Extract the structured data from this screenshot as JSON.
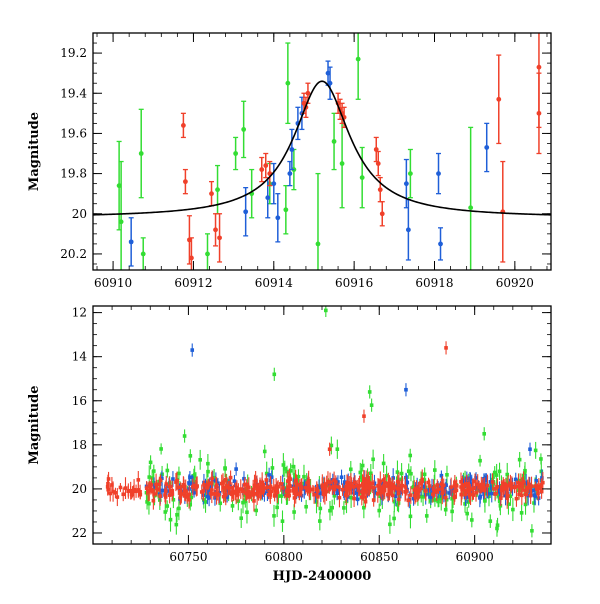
{
  "chart_data": [
    {
      "type": "scatter",
      "xlabel": "",
      "ylabel": "Magnitude",
      "xlim": [
        60909.5,
        60920.9
      ],
      "ylim": [
        20.28,
        19.1
      ],
      "y_inverted": true,
      "x_ticks": [
        60910,
        60912,
        60914,
        60916,
        60918,
        60920
      ],
      "x_tick_labels": [
        "60910",
        "60912",
        "60914",
        "60916",
        "60918",
        "60920"
      ],
      "y_ticks": [
        19.2,
        19.4,
        19.6,
        19.8,
        20,
        20.2
      ],
      "y_tick_labels": [
        "19.2",
        "19.4",
        "19.6",
        "19.8",
        "20",
        "20.2"
      ],
      "series_colors": {
        "green": "#33dd33",
        "blue": "#1f5fd8",
        "red": "#f0402a",
        "model": "#000000"
      },
      "series": [
        {
          "color_key": "green",
          "points": [
            [
              60910.15,
              19.86,
              0.22
            ],
            [
              60910.2,
              20.04,
              0.3
            ],
            [
              60910.7,
              19.7,
              0.22
            ],
            [
              60910.75,
              20.2,
              0.08
            ],
            [
              60912.35,
              20.2,
              0.1
            ],
            [
              60912.6,
              19.88,
              0.12
            ],
            [
              60913.05,
              19.7,
              0.08
            ],
            [
              60913.25,
              19.58,
              0.14
            ],
            [
              60913.45,
              19.9,
              0.12
            ],
            [
              60913.9,
              19.85,
              0.1
            ],
            [
              60914.35,
              19.35,
              0.2
            ],
            [
              60914.3,
              19.98,
              0.12
            ],
            [
              60914.5,
              19.78,
              0.1
            ],
            [
              60915.1,
              20.15,
              0.35
            ],
            [
              60915.5,
              19.64,
              0.14
            ],
            [
              60915.7,
              19.75,
              0.22
            ],
            [
              60916.1,
              19.23,
              0.2
            ],
            [
              60916.2,
              19.82,
              0.15
            ],
            [
              60918.9,
              19.97,
              0.4
            ],
            [
              60917.4,
              19.8,
              0.12
            ]
          ]
        },
        {
          "color_key": "blue",
          "points": [
            [
              60910.45,
              20.14,
              0.12
            ],
            [
              60913.3,
              19.99,
              0.12
            ],
            [
              60913.85,
              19.92,
              0.1
            ],
            [
              60914.0,
              19.85,
              0.1
            ],
            [
              60914.1,
              20.02,
              0.12
            ],
            [
              60914.4,
              19.8,
              0.06
            ],
            [
              60914.45,
              19.68,
              0.1
            ],
            [
              60914.6,
              19.55,
              0.08
            ],
            [
              60914.7,
              19.5,
              0.08
            ],
            [
              60915.35,
              19.3,
              0.06
            ],
            [
              60915.4,
              19.35,
              0.08
            ],
            [
              60917.3,
              19.85,
              0.12
            ],
            [
              60917.35,
              20.08,
              0.15
            ],
            [
              60918.1,
              19.8,
              0.1
            ],
            [
              60918.15,
              20.15,
              0.08
            ],
            [
              60919.3,
              19.67,
              0.12
            ]
          ]
        },
        {
          "color_key": "red",
          "points": [
            [
              60911.75,
              19.56,
              0.06
            ],
            [
              60911.8,
              19.84,
              0.06
            ],
            [
              60911.9,
              20.13,
              0.12
            ],
            [
              60911.95,
              20.22,
              0.1
            ],
            [
              60912.45,
              19.9,
              0.06
            ],
            [
              60912.55,
              20.08,
              0.08
            ],
            [
              60912.65,
              20.12,
              0.12
            ],
            [
              60913.7,
              19.78,
              0.06
            ],
            [
              60913.8,
              19.76,
              0.06
            ],
            [
              60913.9,
              19.8,
              0.06
            ],
            [
              60914.75,
              19.45,
              0.05
            ],
            [
              60914.8,
              19.47,
              0.05
            ],
            [
              60914.85,
              19.4,
              0.05
            ],
            [
              60915.6,
              19.45,
              0.05
            ],
            [
              60915.65,
              19.48,
              0.05
            ],
            [
              60915.7,
              19.5,
              0.05
            ],
            [
              60915.75,
              19.52,
              0.05
            ],
            [
              60916.55,
              19.68,
              0.06
            ],
            [
              60916.6,
              19.75,
              0.06
            ],
            [
              60916.65,
              19.88,
              0.06
            ],
            [
              60916.7,
              20.0,
              0.06
            ],
            [
              60919.6,
              19.43,
              0.22
            ],
            [
              60919.7,
              19.99,
              0.25
            ],
            [
              60920.6,
              19.27,
              0.3
            ],
            [
              60920.6,
              19.5,
              0.2
            ]
          ]
        }
      ],
      "model_curve": {
        "baseline": 20.02,
        "peak_time": 60915.2,
        "peak_magnitude": 19.34,
        "width": 0.85
      }
    },
    {
      "type": "scatter",
      "xlabel": "HJD-2400000",
      "ylabel": "Magnitude",
      "xlim": [
        60700,
        60940
      ],
      "ylim": [
        22.5,
        11.7
      ],
      "y_inverted": true,
      "x_ticks": [
        60750,
        60800,
        60850,
        60900
      ],
      "x_tick_labels": [
        "60750",
        "60800",
        "60850",
        "60900"
      ],
      "y_ticks": [
        12,
        14,
        16,
        18,
        20,
        22
      ],
      "y_tick_labels": [
        "12",
        "14",
        "16",
        "18",
        "20",
        "22"
      ],
      "outliers": {
        "green": [
          [
            60748,
            17.6
          ],
          [
            60751,
            18.5
          ],
          [
            60795,
            14.8
          ],
          [
            60822,
            11.9
          ],
          [
            60845,
            15.6
          ],
          [
            60846,
            16.2
          ],
          [
            60790,
            18.3
          ],
          [
            60905,
            17.5
          ],
          [
            60930,
            21.9
          ]
        ],
        "blue": [
          [
            60752,
            13.7
          ],
          [
            60864,
            15.5
          ],
          [
            60929,
            18.2
          ],
          [
            60775,
            19.1
          ]
        ],
        "red": [
          [
            60885,
            13.6
          ],
          [
            60842,
            16.7
          ],
          [
            60824,
            18.2
          ]
        ]
      }
    }
  ]
}
